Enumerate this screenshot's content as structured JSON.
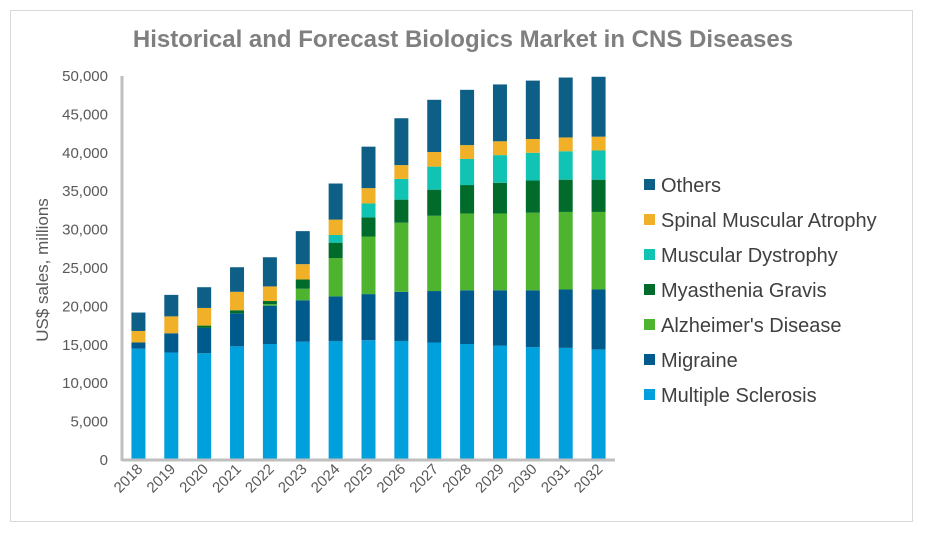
{
  "chart_data": {
    "type": "bar",
    "stacked": true,
    "title": "Historical and Forecast Biologics Market in CNS Diseases",
    "xlabel": "",
    "ylabel": "US$ sales, millions",
    "ylim": [
      0,
      50000
    ],
    "yticks": [
      "0",
      "5,000",
      "10,000",
      "15,000",
      "20,000",
      "25,000",
      "30,000",
      "35,000",
      "40,000",
      "45,000",
      "50,000"
    ],
    "categories": [
      "2018",
      "2019",
      "2020",
      "2021",
      "2022",
      "2023",
      "2024",
      "2025",
      "2026",
      "2027",
      "2028",
      "2029",
      "2030",
      "2031",
      "2032"
    ],
    "series": [
      {
        "name": "Multiple Sclerosis",
        "color": "#00a0dc",
        "values": [
          14500,
          14000,
          13900,
          14800,
          15100,
          15400,
          15500,
          15600,
          15500,
          15300,
          15100,
          14900,
          14700,
          14600,
          14400
        ]
      },
      {
        "name": "Migraine",
        "color": "#005b8c",
        "values": [
          800,
          2500,
          3300,
          4300,
          5000,
          5400,
          5800,
          6000,
          6400,
          6700,
          7000,
          7200,
          7400,
          7600,
          7800
        ]
      },
      {
        "name": "Alzheimer's Disease",
        "color": "#4eb32f",
        "values": [
          0,
          0,
          0,
          0,
          200,
          1500,
          5000,
          7500,
          9000,
          9800,
          10000,
          10000,
          10100,
          10100,
          10100
        ]
      },
      {
        "name": "Myasthenia Gravis",
        "color": "#006b2b",
        "values": [
          0,
          0,
          300,
          400,
          400,
          1200,
          2000,
          2500,
          3000,
          3400,
          3700,
          4000,
          4200,
          4200,
          4200
        ]
      },
      {
        "name": "Muscular Dystrophy",
        "color": "#10c3b3",
        "values": [
          0,
          0,
          0,
          0,
          0,
          0,
          1000,
          1800,
          2700,
          3000,
          3400,
          3600,
          3600,
          3700,
          3800
        ]
      },
      {
        "name": "Spinal Muscular Atrophy",
        "color": "#f0b028",
        "values": [
          1500,
          2200,
          2300,
          2400,
          1900,
          2000,
          2000,
          2000,
          1800,
          1900,
          1800,
          1800,
          1800,
          1800,
          1800
        ]
      },
      {
        "name": "Others",
        "color": "#0e5f86",
        "values": [
          2400,
          2800,
          2700,
          3200,
          3800,
          4300,
          4700,
          5400,
          6100,
          6800,
          7200,
          7400,
          7600,
          7800,
          7800
        ]
      }
    ],
    "legend_position": "right",
    "grid": false
  }
}
